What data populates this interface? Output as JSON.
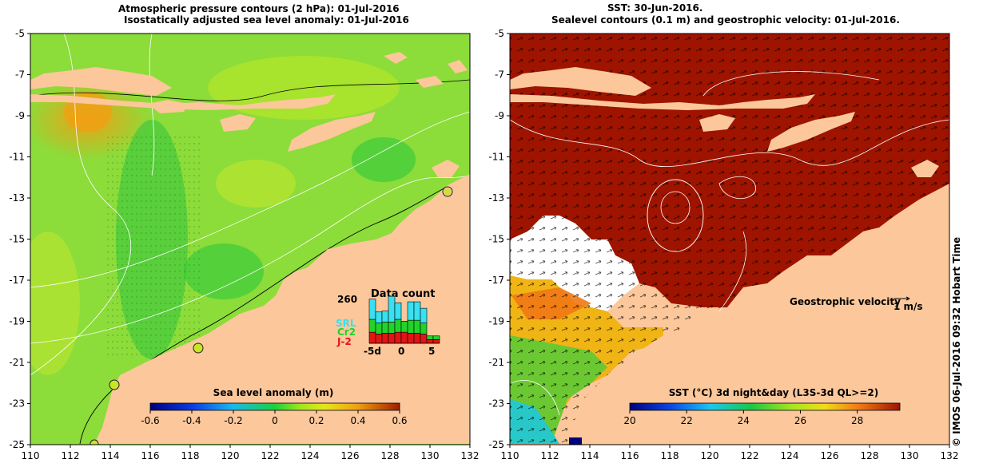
{
  "left_panel": {
    "title_line1": "Atmospheric pressure contours (2 hPa): 01-Jul-2016",
    "title_line2": "Isostatically adjusted sea level anomaly: 01-Jul-2016",
    "colorbar_label": "Sea level anomaly (m)",
    "colorbar_ticks": [
      "-0.6",
      "-0.4",
      "-0.2",
      "0",
      "0.2",
      "0.4",
      "0.6"
    ],
    "data_count": {
      "max_label": "260",
      "title": "Data count",
      "legend": [
        {
          "name": "SRL",
          "color": "#38e0f0"
        },
        {
          "name": "Cr2",
          "color": "#22d22a"
        },
        {
          "name": "J-2",
          "color": "#e21414"
        }
      ],
      "x_labels": [
        "-5d",
        "0",
        "5"
      ]
    }
  },
  "right_panel": {
    "title_line1": "SST: 30-Jun-2016.",
    "title_line2": "Sealevel contours (0.1 m) and geostrophic velocity: 01-Jul-2016.",
    "velocity_label": "Geostrophic velocity",
    "velocity_scale": "1 m/s",
    "colorbar_label": "SST (°C) 3d night&day (L3S-3d QL>=2)",
    "colorbar_ticks": [
      "20",
      "22",
      "24",
      "26",
      "28"
    ]
  },
  "lat_labels": [
    "-5",
    "-7",
    "-9",
    "-11",
    "-13",
    "-15",
    "-17",
    "-19",
    "-21",
    "-23",
    "-25"
  ],
  "lon_labels": [
    "110",
    "112",
    "114",
    "116",
    "118",
    "120",
    "122",
    "124",
    "126",
    "128",
    "130",
    "132"
  ],
  "credit": "© IMOS 06-Jul-2016 09:32 Hobart Time",
  "colors": {
    "land": "#fbc79b",
    "sla_background": "#8cdc3a",
    "sst_warm": "#9e1400",
    "missing": "#ffffff"
  },
  "chart_data": [
    {
      "type": "heatmap",
      "title": "Isostatically adjusted sea level anomaly: 01-Jul-2016",
      "xlabel": "",
      "ylabel": "",
      "xlim": [
        110,
        132
      ],
      "ylim": [
        -25,
        -5
      ],
      "colorbar": {
        "label": "Sea level anomaly (m)",
        "range": [
          -0.6,
          0.6
        ]
      }
    },
    {
      "type": "bar",
      "title": "Data count",
      "categories": [
        "-5",
        "-4",
        "-3",
        "-2",
        "-1",
        "0",
        "1",
        "2",
        "3",
        "4",
        "5"
      ],
      "series": [
        {
          "name": "J-2",
          "values": [
            60,
            50,
            55,
            55,
            60,
            60,
            55,
            55,
            50,
            20,
            20
          ]
        },
        {
          "name": "Cr2",
          "values": [
            70,
            60,
            60,
            60,
            70,
            60,
            70,
            70,
            60,
            20,
            20
          ]
        },
        {
          "name": "SRL",
          "values": [
            110,
            60,
            60,
            140,
            90,
            0,
            100,
            100,
            80,
            0,
            0
          ]
        }
      ],
      "ymax_label": 260
    },
    {
      "type": "heatmap",
      "title": "SST: 30-Jun-2016.",
      "xlabel": "",
      "ylabel": "",
      "xlim": [
        110,
        132
      ],
      "ylim": [
        -25,
        -5
      ],
      "colorbar": {
        "label": "SST (°C) 3d night&day (L3S-3d QL>=2)",
        "range": [
          20,
          29.5
        ]
      }
    }
  ]
}
